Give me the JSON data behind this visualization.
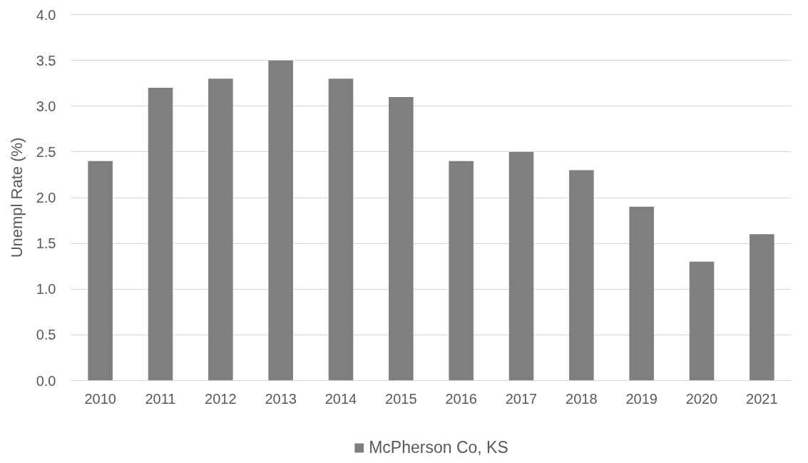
{
  "chart_data": {
    "type": "bar",
    "ylabel": "Unempl Rate (%)",
    "categories": [
      "2010",
      "2011",
      "2012",
      "2013",
      "2014",
      "2015",
      "2016",
      "2017",
      "2018",
      "2019",
      "2020",
      "2021"
    ],
    "series": [
      {
        "name": "McPherson Co, KS",
        "color": "#7f7f7f",
        "values": [
          2.4,
          3.2,
          3.3,
          3.5,
          3.3,
          3.1,
          2.4,
          2.5,
          2.3,
          1.9,
          1.3,
          1.6
        ]
      }
    ],
    "ylim": [
      0,
      4
    ],
    "yticks": [
      {
        "value": 0,
        "label": "0.0"
      },
      {
        "value": 0.5,
        "label": "0.5"
      },
      {
        "value": 1,
        "label": "1.0"
      },
      {
        "value": 1.5,
        "label": "1.5"
      },
      {
        "value": 2,
        "label": "2.0"
      },
      {
        "value": 2.5,
        "label": "2.5"
      },
      {
        "value": 3,
        "label": "3.0"
      },
      {
        "value": 3.5,
        "label": "3.5"
      },
      {
        "value": 4,
        "label": "4.0"
      }
    ],
    "grid": "y",
    "legend": "bottom"
  }
}
